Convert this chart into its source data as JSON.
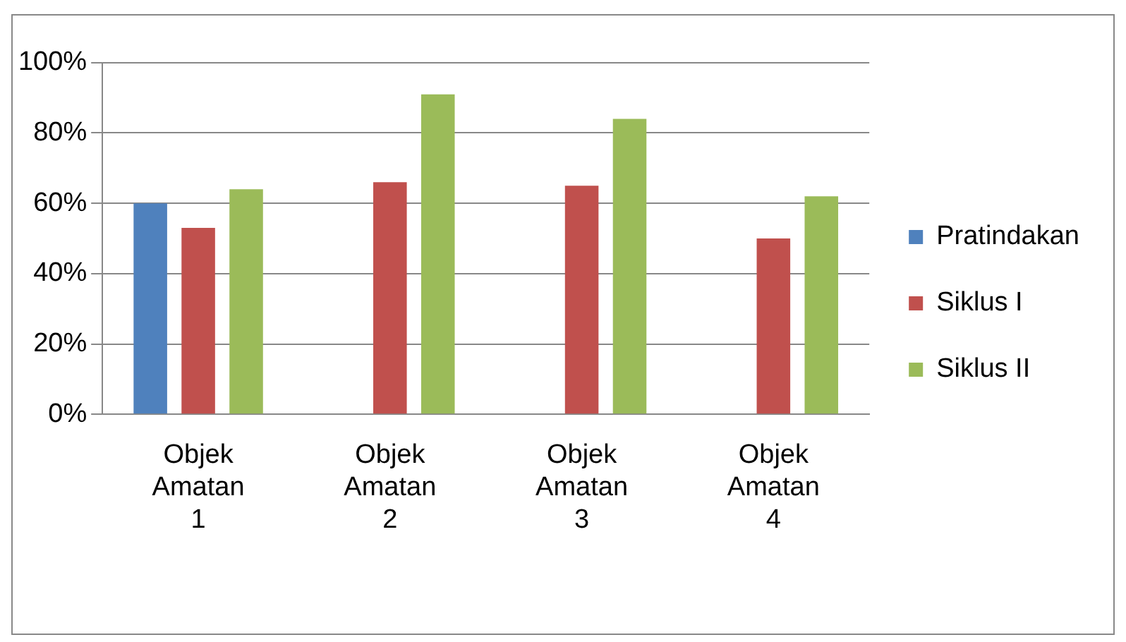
{
  "chart_data": {
    "type": "bar",
    "categories": [
      "Objek Amatan 1",
      "Objek Amatan 2",
      "Objek Amatan 3",
      "Objek Amatan 4"
    ],
    "series": [
      {
        "name": "Pratindakan",
        "color": "#4f81bd",
        "values": [
          60,
          0,
          0,
          0
        ]
      },
      {
        "name": "Siklus I",
        "color": "#c0504d",
        "values": [
          53,
          66,
          65,
          50
        ]
      },
      {
        "name": "Siklus II",
        "color": "#9bbb59",
        "values": [
          64,
          91,
          84,
          62
        ]
      }
    ],
    "ylim": [
      0,
      100
    ],
    "yticks": [
      {
        "value": 0,
        "label": "0%"
      },
      {
        "value": 20,
        "label": "20%"
      },
      {
        "value": 40,
        "label": "40%"
      },
      {
        "value": 60,
        "label": "60%"
      },
      {
        "value": 80,
        "label": "80%"
      },
      {
        "value": 100,
        "label": "100%"
      }
    ],
    "grid": "y",
    "legend": "right"
  }
}
